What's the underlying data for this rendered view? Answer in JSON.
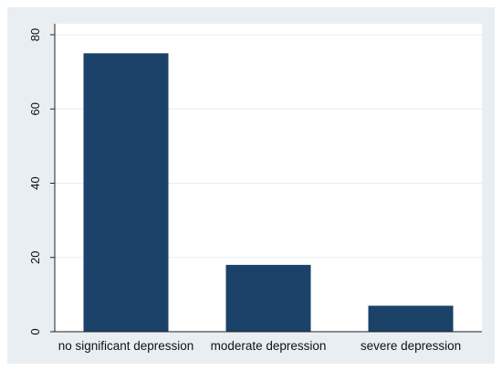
{
  "chart_data": {
    "type": "bar",
    "title": "",
    "xlabel": "",
    "ylabel": "",
    "categories": [
      "no significant depression",
      "moderate depression",
      "severe depression"
    ],
    "values": [
      75,
      18,
      7
    ],
    "ylim": [
      0,
      80
    ],
    "yticks": [
      0,
      20,
      40,
      60,
      80
    ],
    "grid": true,
    "legend": "none",
    "colors": {
      "bar": "#1b4268",
      "outer_background": "#e9eef2",
      "plot_background": "#ffffff",
      "grid": "#e6edf1",
      "axis": "#222222"
    }
  }
}
